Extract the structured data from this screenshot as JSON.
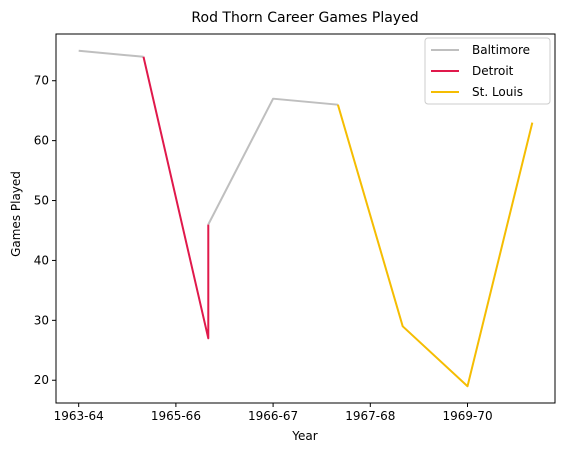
{
  "chart_data": {
    "type": "line",
    "title": "Rod Thorn Career Games Played",
    "xlabel": "Year",
    "ylabel": "Games Played",
    "x_tick_labels": [
      "1963-64",
      "1965-66",
      "1966-67",
      "1967-68",
      "1969-70"
    ],
    "x_tick_positions": [
      0,
      1.5,
      3,
      4.5,
      6
    ],
    "xlim": [
      -0.35,
      7.35
    ],
    "y_ticks": [
      20,
      30,
      40,
      50,
      60,
      70
    ],
    "ylim": [
      16.2,
      77.8
    ],
    "grid": false,
    "legend_position": "top-right",
    "series": [
      {
        "name": "Baltimore",
        "color": "#bfbfbf",
        "x": [
          0,
          1
        ],
        "y": [
          75,
          74
        ]
      },
      {
        "name": "Detroit",
        "color": "#e0194b",
        "x": [
          1,
          2,
          2
        ],
        "y": [
          74,
          27,
          46
        ]
      },
      {
        "name": "Baltimore",
        "color": "#bfbfbf",
        "x": [
          2,
          3,
          4
        ],
        "y": [
          46,
          67,
          66
        ]
      },
      {
        "name": "St. Louis",
        "color": "#f5bd02",
        "x": [
          4,
          5,
          6,
          7
        ],
        "y": [
          66,
          29,
          19,
          63
        ]
      }
    ],
    "legend": [
      {
        "label": "Baltimore",
        "color": "#bfbfbf"
      },
      {
        "label": "Detroit",
        "color": "#e0194b"
      },
      {
        "label": "St. Louis",
        "color": "#f5bd02"
      }
    ]
  }
}
